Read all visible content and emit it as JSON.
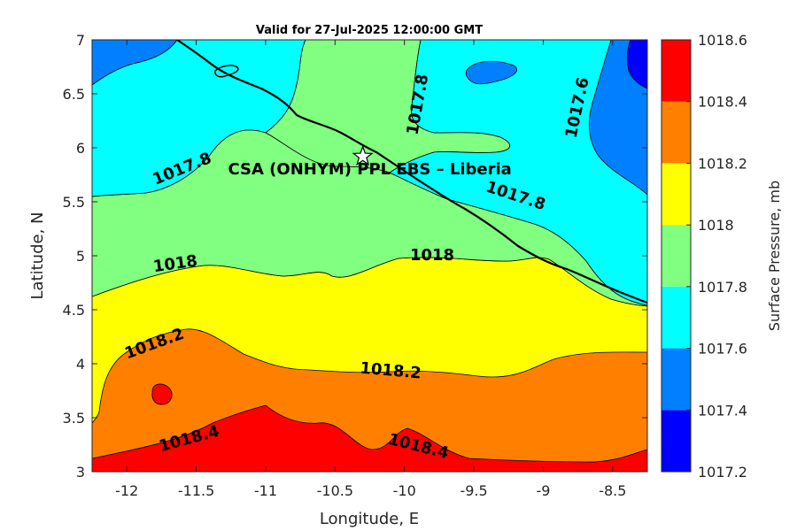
{
  "chart_data": {
    "type": "contour",
    "title": "Valid for 27-Jul-2025 12:00:00 GMT",
    "xlabel": "Longitude, E",
    "ylabel": "Latitude, N",
    "xlim": [
      -12.25,
      -8.25
    ],
    "ylim": [
      3,
      7
    ],
    "xticks": [
      "-12",
      "-11.5",
      "-11",
      "-10.5",
      "-10",
      "-9.5",
      "-9",
      "-8.5"
    ],
    "xtick_values": [
      -12,
      -11.5,
      -11,
      -10.5,
      -10,
      -9.5,
      -9,
      -8.5
    ],
    "yticks": [
      "3",
      "3.5",
      "4",
      "4.5",
      "5",
      "5.5",
      "6",
      "6.5",
      "7"
    ],
    "ytick_values": [
      3,
      3.5,
      4,
      4.5,
      5,
      5.5,
      6,
      6.5,
      7
    ],
    "colorbar": {
      "label": "Surface Pressure, mb",
      "levels": [
        "1017.2",
        "1017.4",
        "1017.6",
        "1017.8",
        "1018",
        "1018.2",
        "1018.4",
        "1018.6"
      ],
      "colors": [
        "#0000ff",
        "#0080ff",
        "#00ffff",
        "#80ff80",
        "#ffff00",
        "#ff8000",
        "#ff0000",
        "#800000"
      ]
    },
    "contour_labels": [
      {
        "text": "1017.8",
        "lon": -11.6,
        "lat": 5.8,
        "angle": -22
      },
      {
        "text": "1017.8",
        "lon": -9.9,
        "lat": 6.4,
        "angle": -80
      },
      {
        "text": "1017.6",
        "lon": -8.75,
        "lat": 6.37,
        "angle": -78
      },
      {
        "text": "1017.8",
        "lon": -9.2,
        "lat": 5.55,
        "angle": 18
      },
      {
        "text": "1018",
        "lon": -11.65,
        "lat": 4.92,
        "angle": -8
      },
      {
        "text": "1018",
        "lon": -9.8,
        "lat": 5.0,
        "angle": 0
      },
      {
        "text": "1018.2",
        "lon": -11.8,
        "lat": 4.18,
        "angle": -20
      },
      {
        "text": "1018.2",
        "lon": -10.1,
        "lat": 3.93,
        "angle": 5
      },
      {
        "text": "1018.4",
        "lon": -11.55,
        "lat": 3.3,
        "angle": -15
      },
      {
        "text": "1018.4",
        "lon": -9.9,
        "lat": 3.23,
        "angle": 14
      }
    ],
    "site": {
      "name": "CSA (ONHYM) PPL EBS  – Liberia",
      "lon": -10.3,
      "lat": 5.92
    }
  }
}
